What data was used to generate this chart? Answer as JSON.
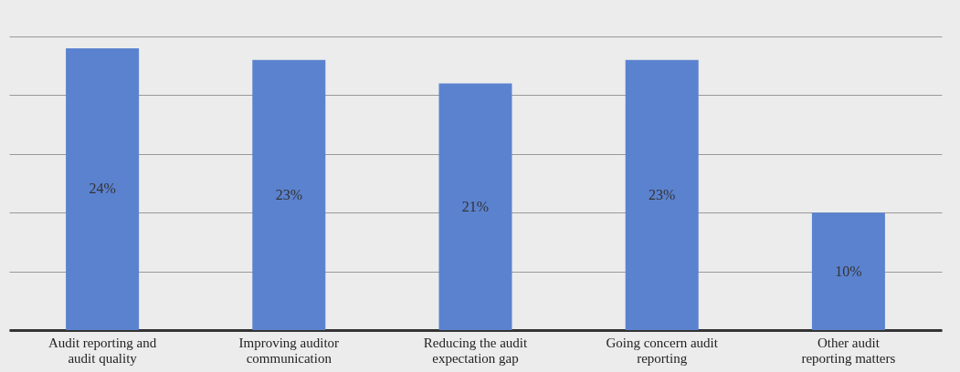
{
  "chart_data": {
    "type": "bar",
    "categories": [
      "Audit reporting and audit quality",
      "Improving auditor communication",
      "Reducing the audit expectation gap",
      "Going concern audit reporting",
      "Other audit reporting matters"
    ],
    "values": [
      24,
      23,
      21,
      23,
      10
    ],
    "value_labels": [
      "24%",
      "23%",
      "21%",
      "23%",
      "10%"
    ],
    "color": "#5b82cf",
    "ylim": [
      0,
      25
    ],
    "yticks": [
      {
        "value": 0,
        "label": null
      },
      {
        "value": 5,
        "label": null
      },
      {
        "value": 10,
        "label": null
      },
      {
        "value": 15,
        "label": null
      },
      {
        "value": 20,
        "label": null
      },
      {
        "value": 25,
        "label": null
      }
    ],
    "grid": "y",
    "tick_labels": "x"
  }
}
